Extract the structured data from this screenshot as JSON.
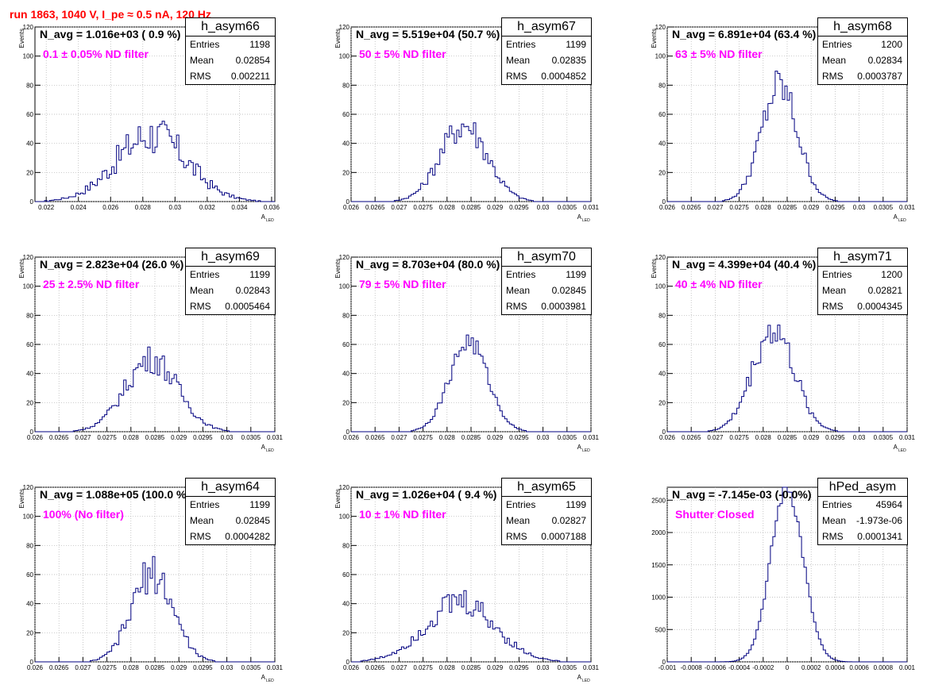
{
  "run_title": "run 1863,  1040 V, I_pe ≈ 0.5 nA, 120 Hz",
  "chart_data": [
    {
      "type": "bar",
      "name": "h_asym66",
      "n_avg_label": "N_avg = 1.016e+03 ( 0.9 %)",
      "filter_label": "0.1 ± 0.05% ND filter",
      "stats": {
        "entries_label": "Entries",
        "entries": "1198",
        "mean_label": "Mean",
        "mean": "0.02854",
        "rms_label": "RMS",
        "rms": "0.002211"
      },
      "xlabel": "A",
      "xlabel_sub": "LED",
      "ylabel": "Events",
      "xlim": [
        0.0213,
        0.0362
      ],
      "ylim": [
        0,
        120
      ],
      "xticks": [
        0.022,
        0.024,
        0.026,
        0.028,
        0.03,
        0.032,
        0.034,
        0.036
      ],
      "xtick_labels": [
        "0.022",
        "0.024",
        "0.026",
        "0.028",
        "0.03",
        "0.032",
        "0.034",
        "0.036"
      ],
      "yticks": [
        0,
        20,
        40,
        60,
        80,
        100,
        120
      ],
      "ytick_labels": [
        "0",
        "20",
        "40",
        "60",
        "80",
        "100",
        "120"
      ],
      "mean": 0.02854,
      "rms": 0.002211,
      "entries": 1198,
      "peak": 46,
      "noise": 0.32
    },
    {
      "type": "bar",
      "name": "h_asym67",
      "n_avg_label": "N_avg = 5.519e+04 (50.7 %)",
      "filter_label": "50 ± 5% ND filter",
      "stats": {
        "entries_label": "Entries",
        "entries": "1199",
        "mean_label": "Mean",
        "mean": "0.02835",
        "rms_label": "RMS",
        "rms": "0.0004852"
      },
      "xlabel": "A",
      "xlabel_sub": "LED",
      "ylabel": "Events",
      "xlim": [
        0.026,
        0.031
      ],
      "ylim": [
        0,
        120
      ],
      "xticks": [
        0.026,
        0.0265,
        0.027,
        0.0275,
        0.028,
        0.0285,
        0.029,
        0.0295,
        0.03,
        0.0305,
        0.031
      ],
      "xtick_labels": [
        "0.026",
        "0.0265",
        "0.027",
        "0.0275",
        "0.028",
        "0.0285",
        "0.029",
        "0.0295",
        "0.03",
        "0.0305",
        "0.031"
      ],
      "yticks": [
        0,
        20,
        40,
        60,
        80,
        100,
        120
      ],
      "ytick_labels": [
        "0",
        "20",
        "40",
        "60",
        "80",
        "100",
        "120"
      ],
      "mean": 0.02835,
      "rms": 0.0004852,
      "entries": 1199,
      "peak": 53,
      "noise": 0.22
    },
    {
      "type": "bar",
      "name": "h_asym68",
      "n_avg_label": "N_avg = 6.891e+04 (63.4 %)",
      "filter_label": "63 ± 5% ND filter",
      "stats": {
        "entries_label": "Entries",
        "entries": "1200",
        "mean_label": "Mean",
        "mean": "0.02834",
        "rms_label": "RMS",
        "rms": "0.0003787"
      },
      "xlabel": "A",
      "xlabel_sub": "LED",
      "ylabel": "Events",
      "xlim": [
        0.026,
        0.031
      ],
      "ylim": [
        0,
        120
      ],
      "xticks": [
        0.026,
        0.0265,
        0.027,
        0.0275,
        0.028,
        0.0285,
        0.029,
        0.0295,
        0.03,
        0.0305,
        0.031
      ],
      "xtick_labels": [
        "0.026",
        "0.0265",
        "0.027",
        "0.0275",
        "0.028",
        "0.0285",
        "0.029",
        "0.0295",
        "0.03",
        "0.0305",
        "0.031"
      ],
      "yticks": [
        0,
        20,
        40,
        60,
        80,
        100,
        120
      ],
      "ytick_labels": [
        "0",
        "20",
        "40",
        "60",
        "80",
        "100",
        "120"
      ],
      "mean": 0.02834,
      "rms": 0.0003787,
      "entries": 1200,
      "peak": 79,
      "noise": 0.18
    },
    {
      "type": "bar",
      "name": "h_asym69",
      "n_avg_label": "N_avg = 2.823e+04 (26.0 %)",
      "filter_label": "25 ± 2.5% ND filter",
      "stats": {
        "entries_label": "Entries",
        "entries": "1199",
        "mean_label": "Mean",
        "mean": "0.02843",
        "rms_label": "RMS",
        "rms": "0.0005464"
      },
      "xlabel": "A",
      "xlabel_sub": "LED",
      "ylabel": "Events",
      "xlim": [
        0.026,
        0.031
      ],
      "ylim": [
        0,
        120
      ],
      "xticks": [
        0.026,
        0.0265,
        0.027,
        0.0275,
        0.028,
        0.0285,
        0.029,
        0.0295,
        0.03,
        0.0305,
        0.031
      ],
      "xtick_labels": [
        "0.026",
        "0.0265",
        "0.027",
        "0.0275",
        "0.028",
        "0.0285",
        "0.029",
        "0.0295",
        "0.03",
        "0.0305",
        "0.031"
      ],
      "yticks": [
        0,
        20,
        40,
        60,
        80,
        100,
        120
      ],
      "ytick_labels": [
        "0",
        "20",
        "40",
        "60",
        "80",
        "100",
        "120"
      ],
      "mean": 0.02843,
      "rms": 0.0005464,
      "entries": 1199,
      "peak": 50,
      "noise": 0.2
    },
    {
      "type": "bar",
      "name": "h_asym70",
      "n_avg_label": "N_avg = 8.703e+04 (80.0 %)",
      "filter_label": "79 ± 5% ND filter",
      "stats": {
        "entries_label": "Entries",
        "entries": "1199",
        "mean_label": "Mean",
        "mean": "0.02845",
        "rms_label": "RMS",
        "rms": "0.0003981"
      },
      "xlabel": "A",
      "xlabel_sub": "LED",
      "ylabel": "Events",
      "xlim": [
        0.026,
        0.031
      ],
      "ylim": [
        0,
        120
      ],
      "xticks": [
        0.026,
        0.0265,
        0.027,
        0.0275,
        0.028,
        0.0285,
        0.029,
        0.0295,
        0.03,
        0.0305,
        0.031
      ],
      "xtick_labels": [
        "0.026",
        "0.0265",
        "0.027",
        "0.0275",
        "0.028",
        "0.0285",
        "0.029",
        "0.0295",
        "0.03",
        "0.0305",
        "0.031"
      ],
      "yticks": [
        0,
        20,
        40,
        60,
        80,
        100,
        120
      ],
      "ytick_labels": [
        "0",
        "20",
        "40",
        "60",
        "80",
        "100",
        "120"
      ],
      "mean": 0.02845,
      "rms": 0.0003981,
      "entries": 1199,
      "peak": 62,
      "noise": 0.12
    },
    {
      "type": "bar",
      "name": "h_asym71",
      "n_avg_label": "N_avg = 4.399e+04 (40.4 %)",
      "filter_label": "40 ± 4% ND filter",
      "stats": {
        "entries_label": "Entries",
        "entries": "1200",
        "mean_label": "Mean",
        "mean": "0.02821",
        "rms_label": "RMS",
        "rms": "0.0004345"
      },
      "xlabel": "A",
      "xlabel_sub": "LED",
      "ylabel": "Events",
      "xlim": [
        0.026,
        0.031
      ],
      "ylim": [
        0,
        120
      ],
      "xticks": [
        0.026,
        0.0265,
        0.027,
        0.0275,
        0.028,
        0.0285,
        0.029,
        0.0295,
        0.03,
        0.0305,
        0.031
      ],
      "xtick_labels": [
        "0.026",
        "0.0265",
        "0.027",
        "0.0275",
        "0.028",
        "0.0285",
        "0.029",
        "0.0295",
        "0.03",
        "0.0305",
        "0.031"
      ],
      "yticks": [
        0,
        20,
        40,
        60,
        80,
        100,
        120
      ],
      "ytick_labels": [
        "0",
        "20",
        "40",
        "60",
        "80",
        "100",
        "120"
      ],
      "mean": 0.02821,
      "rms": 0.0004345,
      "entries": 1200,
      "peak": 70,
      "noise": 0.18
    },
    {
      "type": "bar",
      "name": "h_asym64",
      "n_avg_label": "N_avg = 1.088e+05 (100.0 %)",
      "filter_label": "100% (No filter)",
      "stats": {
        "entries_label": "Entries",
        "entries": "1199",
        "mean_label": "Mean",
        "mean": "0.02845",
        "rms_label": "RMS",
        "rms": "0.0004282"
      },
      "xlabel": "A",
      "xlabel_sub": "LED",
      "ylabel": "Events",
      "xlim": [
        0.026,
        0.031
      ],
      "ylim": [
        0,
        120
      ],
      "xticks": [
        0.026,
        0.0265,
        0.027,
        0.0275,
        0.028,
        0.0285,
        0.029,
        0.0295,
        0.03,
        0.0305,
        0.031
      ],
      "xtick_labels": [
        "0.026",
        "0.0265",
        "0.027",
        "0.0275",
        "0.028",
        "0.0285",
        "0.029",
        "0.0295",
        "0.03",
        "0.0305",
        "0.031"
      ],
      "yticks": [
        0,
        20,
        40,
        60,
        80,
        100,
        120
      ],
      "ytick_labels": [
        "0",
        "20",
        "40",
        "60",
        "80",
        "100",
        "120"
      ],
      "mean": 0.02845,
      "rms": 0.0004282,
      "entries": 1199,
      "peak": 61,
      "noise": 0.22
    },
    {
      "type": "bar",
      "name": "h_asym65",
      "n_avg_label": "N_avg = 1.026e+04 ( 9.4 %)",
      "filter_label": "10 ± 1% ND filter",
      "stats": {
        "entries_label": "Entries",
        "entries": "1199",
        "mean_label": "Mean",
        "mean": "0.02827",
        "rms_label": "RMS",
        "rms": "0.0007188"
      },
      "xlabel": "A",
      "xlabel_sub": "LED",
      "ylabel": "Events",
      "xlim": [
        0.026,
        0.031
      ],
      "ylim": [
        0,
        120
      ],
      "xticks": [
        0.026,
        0.0265,
        0.027,
        0.0275,
        0.028,
        0.0285,
        0.029,
        0.0295,
        0.03,
        0.0305,
        0.031
      ],
      "xtick_labels": [
        "0.026",
        "0.0265",
        "0.027",
        "0.0275",
        "0.028",
        "0.0285",
        "0.029",
        "0.0295",
        "0.03",
        "0.0305",
        "0.031"
      ],
      "yticks": [
        0,
        20,
        40,
        60,
        80,
        100,
        120
      ],
      "ytick_labels": [
        "0",
        "20",
        "40",
        "60",
        "80",
        "100",
        "120"
      ],
      "mean": 0.02827,
      "rms": 0.0007188,
      "entries": 1199,
      "peak": 41,
      "noise": 0.25
    },
    {
      "type": "bar",
      "name": "hPed_asym",
      "n_avg_label": "N_avg = -7.145e-03 (-0.0%)",
      "filter_label": "Shutter Closed",
      "stats": {
        "entries_label": "Entries",
        "entries": "45964",
        "mean_label": "Mean",
        "mean": "-1.973e-06",
        "rms_label": "RMS",
        "rms": "0.0001341"
      },
      "xlabel": "",
      "xlabel_sub": "",
      "ylabel": "",
      "xlim": [
        -0.001,
        0.001
      ],
      "ylim": [
        0,
        2700
      ],
      "xticks": [
        -0.001,
        -0.0008,
        -0.0006,
        -0.0004,
        -0.0002,
        0,
        0.0002,
        0.0004,
        0.0006,
        0.0008,
        0.001
      ],
      "xtick_labels": [
        "-0.001",
        "-0.0008",
        "-0.0006",
        "-0.0004",
        "-0.0002",
        "0",
        "0.0002",
        "0.0004",
        "0.0006",
        "0.0008",
        "0.001"
      ],
      "yticks": [
        0,
        500,
        1000,
        1500,
        2000,
        2500
      ],
      "ytick_labels": [
        "0",
        "500",
        "1000",
        "1500",
        "2000",
        "2500"
      ],
      "mean": -2e-06,
      "rms": 0.0001341,
      "entries": 45964,
      "peak": 2700,
      "noise": 0.05
    }
  ]
}
